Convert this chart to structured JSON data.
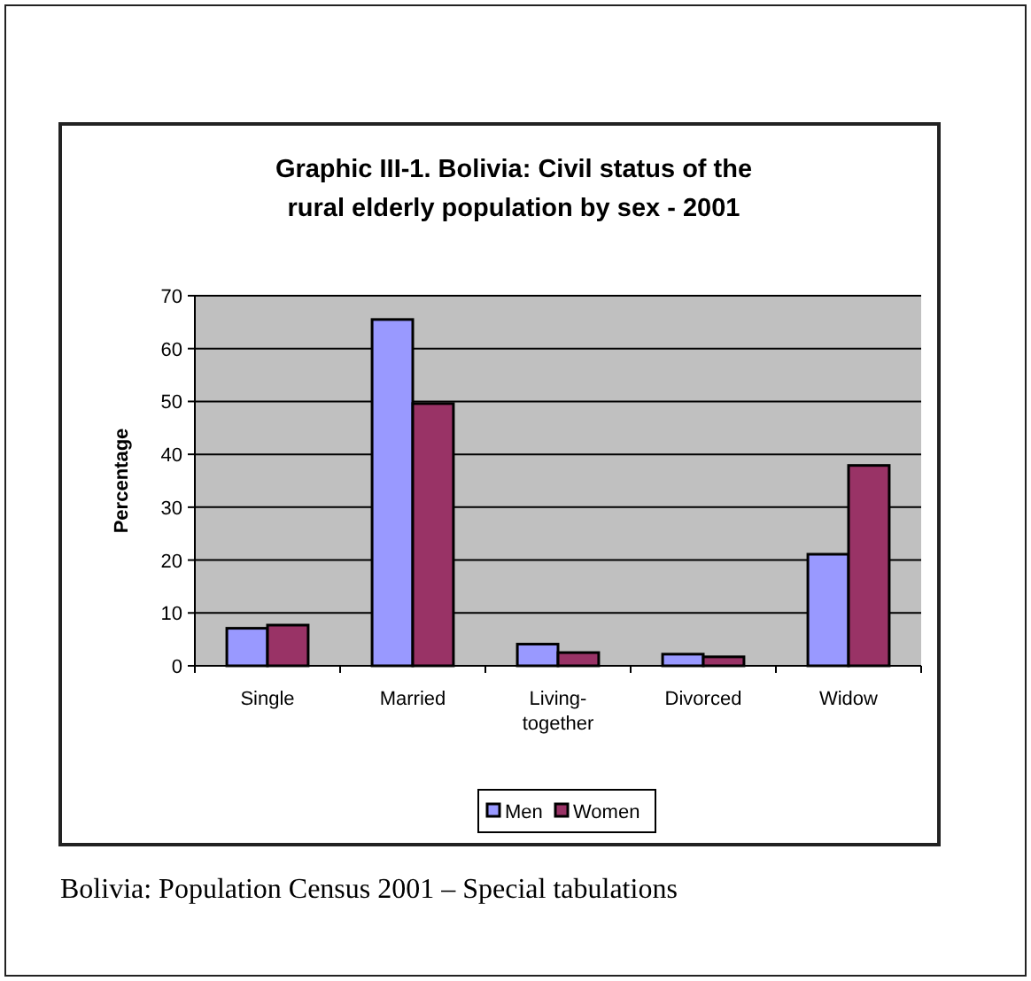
{
  "chart_data": {
    "type": "bar",
    "title": "Graphic III-1. Bolivia: Civil status of the rural elderly population by sex - 2001",
    "ylabel": "Percentage",
    "categories": [
      "Single",
      "Married",
      "Living-together",
      "Divorced",
      "Widow"
    ],
    "series": [
      {
        "name": "Men",
        "color": "#9999ff",
        "values": [
          7.1,
          65.5,
          4.1,
          2.2,
          21.1
        ]
      },
      {
        "name": "Women",
        "color": "#993366",
        "values": [
          7.7,
          49.6,
          2.5,
          1.7,
          37.9
        ]
      }
    ],
    "ylim": [
      0,
      70
    ],
    "yticks": [
      0,
      10,
      20,
      30,
      40,
      50,
      60,
      70
    ],
    "grid": "y",
    "legend": "bottom",
    "annotations": [
      "Bolivia: Population Census 2001 – Special tabulations"
    ]
  }
}
